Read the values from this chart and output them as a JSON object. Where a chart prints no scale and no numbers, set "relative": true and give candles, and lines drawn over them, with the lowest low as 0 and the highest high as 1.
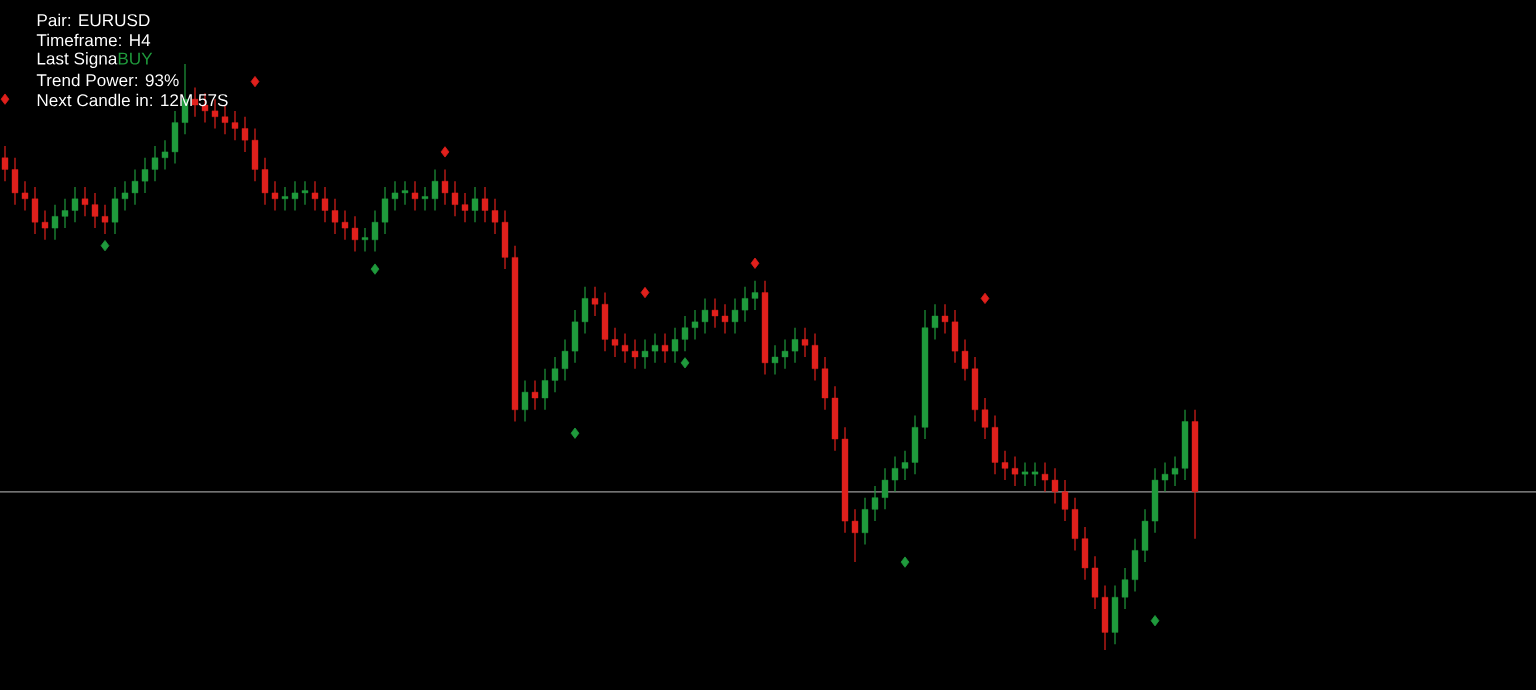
{
  "chart_data": {
    "type": "candlestick",
    "relative": true,
    "categories": [
      null,
      null,
      null,
      null,
      null,
      null,
      null,
      null,
      null,
      null,
      null,
      null,
      null,
      null,
      null,
      null,
      null,
      null,
      null,
      null,
      null,
      null,
      null,
      null,
      null,
      null,
      null,
      null,
      null,
      null,
      null,
      null,
      null,
      null,
      null,
      null,
      null,
      null,
      null,
      null,
      null,
      null,
      null,
      null,
      null,
      null,
      null,
      null,
      null,
      null,
      null,
      null,
      null,
      null,
      null,
      null,
      null,
      null,
      null,
      null,
      null,
      null,
      null,
      null,
      null,
      null,
      null,
      null,
      null,
      null,
      null,
      null,
      null,
      null,
      null,
      null,
      null,
      null,
      null,
      null,
      null,
      null,
      null,
      null,
      null,
      null,
      null,
      null,
      null,
      null,
      null,
      null,
      null,
      null,
      null,
      null,
      null,
      null,
      null,
      null,
      null,
      null,
      null,
      null,
      null,
      null,
      null,
      null,
      null,
      null,
      null,
      null,
      null,
      null,
      null,
      null,
      null,
      null,
      null,
      null
    ],
    "ohlc": [
      [
        0.84,
        0.86,
        0.8,
        0.82
      ],
      [
        0.82,
        0.84,
        0.76,
        0.78
      ],
      [
        0.78,
        0.8,
        0.75,
        0.77
      ],
      [
        0.77,
        0.79,
        0.71,
        0.73
      ],
      [
        0.73,
        0.75,
        0.7,
        0.72
      ],
      [
        0.72,
        0.76,
        0.7,
        0.74
      ],
      [
        0.74,
        0.77,
        0.72,
        0.75
      ],
      [
        0.75,
        0.79,
        0.73,
        0.77
      ],
      [
        0.77,
        0.79,
        0.74,
        0.76
      ],
      [
        0.76,
        0.78,
        0.72,
        0.74
      ],
      [
        0.74,
        0.76,
        0.71,
        0.73
      ],
      [
        0.73,
        0.79,
        0.71,
        0.77
      ],
      [
        0.77,
        0.8,
        0.75,
        0.78
      ],
      [
        0.78,
        0.82,
        0.76,
        0.8
      ],
      [
        0.8,
        0.84,
        0.78,
        0.82
      ],
      [
        0.82,
        0.86,
        0.8,
        0.84
      ],
      [
        0.84,
        0.87,
        0.82,
        0.85
      ],
      [
        0.85,
        0.92,
        0.83,
        0.9
      ],
      [
        0.9,
        1.0,
        0.88,
        0.94
      ],
      [
        0.94,
        0.96,
        0.91,
        0.93
      ],
      [
        0.93,
        0.95,
        0.9,
        0.92
      ],
      [
        0.92,
        0.94,
        0.89,
        0.91
      ],
      [
        0.91,
        0.93,
        0.88,
        0.9
      ],
      [
        0.9,
        0.92,
        0.87,
        0.89
      ],
      [
        0.89,
        0.91,
        0.85,
        0.87
      ],
      [
        0.87,
        0.89,
        0.8,
        0.82
      ],
      [
        0.82,
        0.84,
        0.76,
        0.78
      ],
      [
        0.78,
        0.8,
        0.75,
        0.77
      ],
      [
        0.77,
        0.79,
        0.75,
        0.77
      ],
      [
        0.77,
        0.8,
        0.75,
        0.78
      ],
      [
        0.78,
        0.8,
        0.76,
        0.78
      ],
      [
        0.78,
        0.8,
        0.75,
        0.77
      ],
      [
        0.77,
        0.79,
        0.73,
        0.75
      ],
      [
        0.75,
        0.77,
        0.71,
        0.73
      ],
      [
        0.73,
        0.75,
        0.7,
        0.72
      ],
      [
        0.72,
        0.74,
        0.68,
        0.7
      ],
      [
        0.7,
        0.72,
        0.68,
        0.7
      ],
      [
        0.7,
        0.75,
        0.68,
        0.73
      ],
      [
        0.73,
        0.79,
        0.71,
        0.77
      ],
      [
        0.77,
        0.8,
        0.75,
        0.78
      ],
      [
        0.78,
        0.8,
        0.76,
        0.78
      ],
      [
        0.78,
        0.8,
        0.75,
        0.77
      ],
      [
        0.77,
        0.79,
        0.75,
        0.77
      ],
      [
        0.77,
        0.82,
        0.75,
        0.8
      ],
      [
        0.8,
        0.82,
        0.76,
        0.78
      ],
      [
        0.78,
        0.8,
        0.74,
        0.76
      ],
      [
        0.76,
        0.78,
        0.73,
        0.75
      ],
      [
        0.75,
        0.79,
        0.73,
        0.77
      ],
      [
        0.77,
        0.79,
        0.73,
        0.75
      ],
      [
        0.75,
        0.77,
        0.71,
        0.73
      ],
      [
        0.73,
        0.75,
        0.65,
        0.67
      ],
      [
        0.67,
        0.69,
        0.39,
        0.41
      ],
      [
        0.41,
        0.46,
        0.39,
        0.44
      ],
      [
        0.44,
        0.46,
        0.41,
        0.43
      ],
      [
        0.43,
        0.48,
        0.41,
        0.46
      ],
      [
        0.46,
        0.5,
        0.44,
        0.48
      ],
      [
        0.48,
        0.53,
        0.46,
        0.51
      ],
      [
        0.51,
        0.58,
        0.49,
        0.56
      ],
      [
        0.56,
        0.62,
        0.54,
        0.6
      ],
      [
        0.6,
        0.62,
        0.57,
        0.59
      ],
      [
        0.59,
        0.61,
        0.51,
        0.53
      ],
      [
        0.53,
        0.55,
        0.5,
        0.52
      ],
      [
        0.52,
        0.54,
        0.49,
        0.51
      ],
      [
        0.51,
        0.53,
        0.48,
        0.5
      ],
      [
        0.5,
        0.53,
        0.48,
        0.51
      ],
      [
        0.51,
        0.54,
        0.49,
        0.52
      ],
      [
        0.52,
        0.54,
        0.49,
        0.51
      ],
      [
        0.51,
        0.55,
        0.49,
        0.53
      ],
      [
        0.53,
        0.57,
        0.51,
        0.55
      ],
      [
        0.55,
        0.58,
        0.53,
        0.56
      ],
      [
        0.56,
        0.6,
        0.54,
        0.58
      ],
      [
        0.58,
        0.6,
        0.55,
        0.57
      ],
      [
        0.57,
        0.59,
        0.54,
        0.56
      ],
      [
        0.56,
        0.6,
        0.54,
        0.58
      ],
      [
        0.58,
        0.62,
        0.56,
        0.6
      ],
      [
        0.6,
        0.63,
        0.58,
        0.61
      ],
      [
        0.61,
        0.63,
        0.47,
        0.49
      ],
      [
        0.49,
        0.52,
        0.47,
        0.5
      ],
      [
        0.5,
        0.53,
        0.48,
        0.51
      ],
      [
        0.51,
        0.55,
        0.49,
        0.53
      ],
      [
        0.53,
        0.55,
        0.5,
        0.52
      ],
      [
        0.52,
        0.54,
        0.46,
        0.48
      ],
      [
        0.48,
        0.5,
        0.41,
        0.43
      ],
      [
        0.43,
        0.45,
        0.34,
        0.36
      ],
      [
        0.36,
        0.38,
        0.2,
        0.22
      ],
      [
        0.22,
        0.24,
        0.15,
        0.2
      ],
      [
        0.2,
        0.26,
        0.18,
        0.24
      ],
      [
        0.24,
        0.28,
        0.22,
        0.26
      ],
      [
        0.26,
        0.31,
        0.24,
        0.29
      ],
      [
        0.29,
        0.33,
        0.27,
        0.31
      ],
      [
        0.31,
        0.34,
        0.29,
        0.32
      ],
      [
        0.32,
        0.4,
        0.3,
        0.38
      ],
      [
        0.38,
        0.58,
        0.36,
        0.55
      ],
      [
        0.55,
        0.59,
        0.53,
        0.57
      ],
      [
        0.57,
        0.59,
        0.54,
        0.56
      ],
      [
        0.56,
        0.58,
        0.49,
        0.51
      ],
      [
        0.51,
        0.53,
        0.46,
        0.48
      ],
      [
        0.48,
        0.5,
        0.39,
        0.41
      ],
      [
        0.41,
        0.43,
        0.36,
        0.38
      ],
      [
        0.38,
        0.4,
        0.3,
        0.32
      ],
      [
        0.32,
        0.34,
        0.29,
        0.31
      ],
      [
        0.31,
        0.33,
        0.28,
        0.3
      ],
      [
        0.3,
        0.32,
        0.28,
        0.3
      ],
      [
        0.3,
        0.32,
        0.28,
        0.3
      ],
      [
        0.3,
        0.32,
        0.27,
        0.29
      ],
      [
        0.29,
        0.31,
        0.25,
        0.27
      ],
      [
        0.27,
        0.29,
        0.22,
        0.24
      ],
      [
        0.24,
        0.26,
        0.17,
        0.19
      ],
      [
        0.19,
        0.21,
        0.12,
        0.14
      ],
      [
        0.14,
        0.16,
        0.07,
        0.09
      ],
      [
        0.09,
        0.11,
        0.0,
        0.03
      ],
      [
        0.03,
        0.11,
        0.01,
        0.09
      ],
      [
        0.09,
        0.14,
        0.07,
        0.12
      ],
      [
        0.12,
        0.19,
        0.1,
        0.17
      ],
      [
        0.17,
        0.24,
        0.15,
        0.22
      ],
      [
        0.22,
        0.31,
        0.2,
        0.29
      ],
      [
        0.29,
        0.32,
        0.27,
        0.3
      ],
      [
        0.3,
        0.33,
        0.28,
        0.31
      ],
      [
        0.31,
        0.41,
        0.29,
        0.39
      ],
      [
        0.39,
        0.41,
        0.19,
        0.27
      ]
    ],
    "series": [
      {
        "type": "scatter",
        "marker": "diamond",
        "color": "#1f9a3c",
        "values": [
          null,
          null,
          null,
          null,
          null,
          null,
          null,
          null,
          null,
          null,
          0.69,
          null,
          null,
          null,
          null,
          null,
          null,
          null,
          null,
          null,
          null,
          null,
          null,
          null,
          null,
          null,
          null,
          null,
          null,
          null,
          null,
          null,
          null,
          null,
          null,
          null,
          null,
          0.65,
          null,
          null,
          null,
          null,
          null,
          null,
          null,
          null,
          null,
          null,
          null,
          null,
          null,
          null,
          null,
          null,
          null,
          null,
          null,
          0.37,
          null,
          null,
          null,
          null,
          null,
          null,
          null,
          null,
          null,
          null,
          0.49,
          null,
          null,
          null,
          null,
          null,
          null,
          null,
          null,
          null,
          null,
          null,
          null,
          null,
          null,
          null,
          null,
          null,
          null,
          null,
          null,
          null,
          0.15,
          null,
          null,
          null,
          null,
          null,
          null,
          null,
          null,
          null,
          null,
          null,
          null,
          null,
          null,
          null,
          null,
          null,
          null,
          null,
          null,
          null,
          null,
          null,
          null,
          0.05,
          null,
          null,
          null,
          null
        ]
      },
      {
        "type": "scatter",
        "marker": "diamond",
        "color": "#e0201c",
        "values": [
          0.94,
          null,
          null,
          null,
          null,
          null,
          null,
          null,
          null,
          null,
          null,
          null,
          null,
          null,
          null,
          null,
          null,
          null,
          null,
          null,
          null,
          null,
          null,
          null,
          null,
          0.97,
          null,
          null,
          null,
          null,
          null,
          null,
          null,
          null,
          null,
          null,
          null,
          null,
          null,
          null,
          null,
          null,
          null,
          null,
          0.85,
          null,
          null,
          null,
          null,
          null,
          null,
          null,
          null,
          null,
          null,
          null,
          null,
          null,
          null,
          null,
          null,
          null,
          null,
          null,
          0.61,
          null,
          null,
          null,
          null,
          null,
          null,
          null,
          null,
          null,
          null,
          0.66,
          null,
          null,
          null,
          null,
          null,
          null,
          null,
          null,
          null,
          null,
          null,
          null,
          null,
          null,
          null,
          null,
          null,
          null,
          null,
          null,
          null,
          null,
          0.6,
          null,
          null,
          null,
          null,
          null,
          null,
          null,
          null,
          null,
          null,
          null,
          null,
          null,
          null,
          null,
          null,
          null,
          null,
          null,
          null,
          null
        ]
      }
    ],
    "ref_lines": [
      {
        "axis": "y",
        "value": 0.27,
        "color": "#9a9a9a"
      }
    ],
    "annotations": [
      "Pair: EURUSD",
      "Timeframe: H4",
      "Last Signa",
      "BUY",
      "Trend Power: 93%",
      "Next Candle in: 12M 57S"
    ]
  }
}
